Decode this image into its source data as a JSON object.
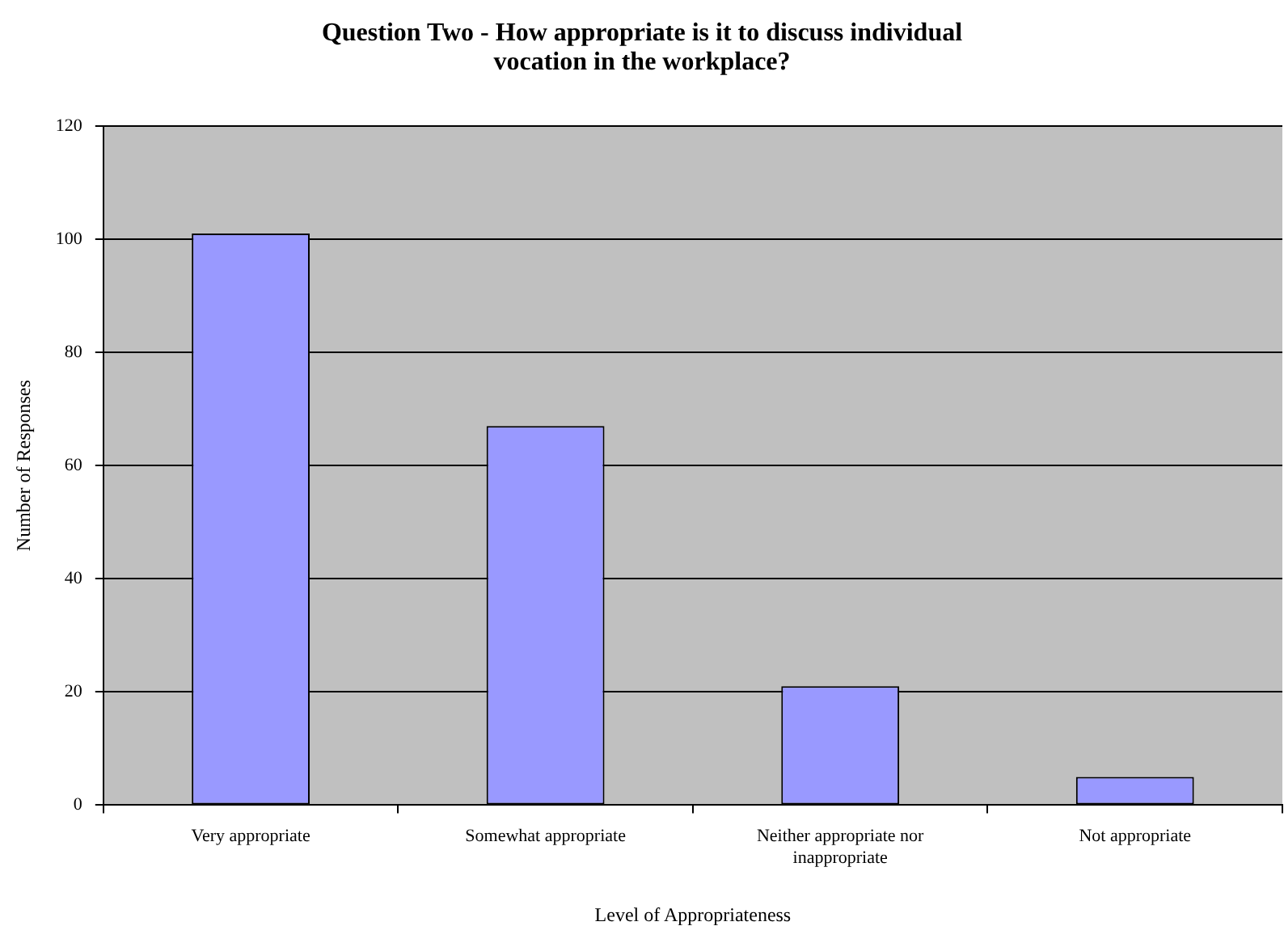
{
  "chart_data": {
    "type": "bar",
    "title": "Question Two - How appropriate is it to discuss individual vocation in the workplace?",
    "xlabel": "Level of Appropriateness",
    "ylabel": "Number of Responses",
    "categories": [
      "Very appropriate",
      "Somewhat appropriate",
      "Neither appropriate nor inappropriate",
      "Not appropriate"
    ],
    "values": [
      101,
      67,
      21,
      5
    ],
    "color": "#9999ff",
    "ylim": [
      0,
      120
    ],
    "yticks": [
      0,
      20,
      40,
      60,
      80,
      100,
      120
    ],
    "grid": "y",
    "legend": false
  }
}
